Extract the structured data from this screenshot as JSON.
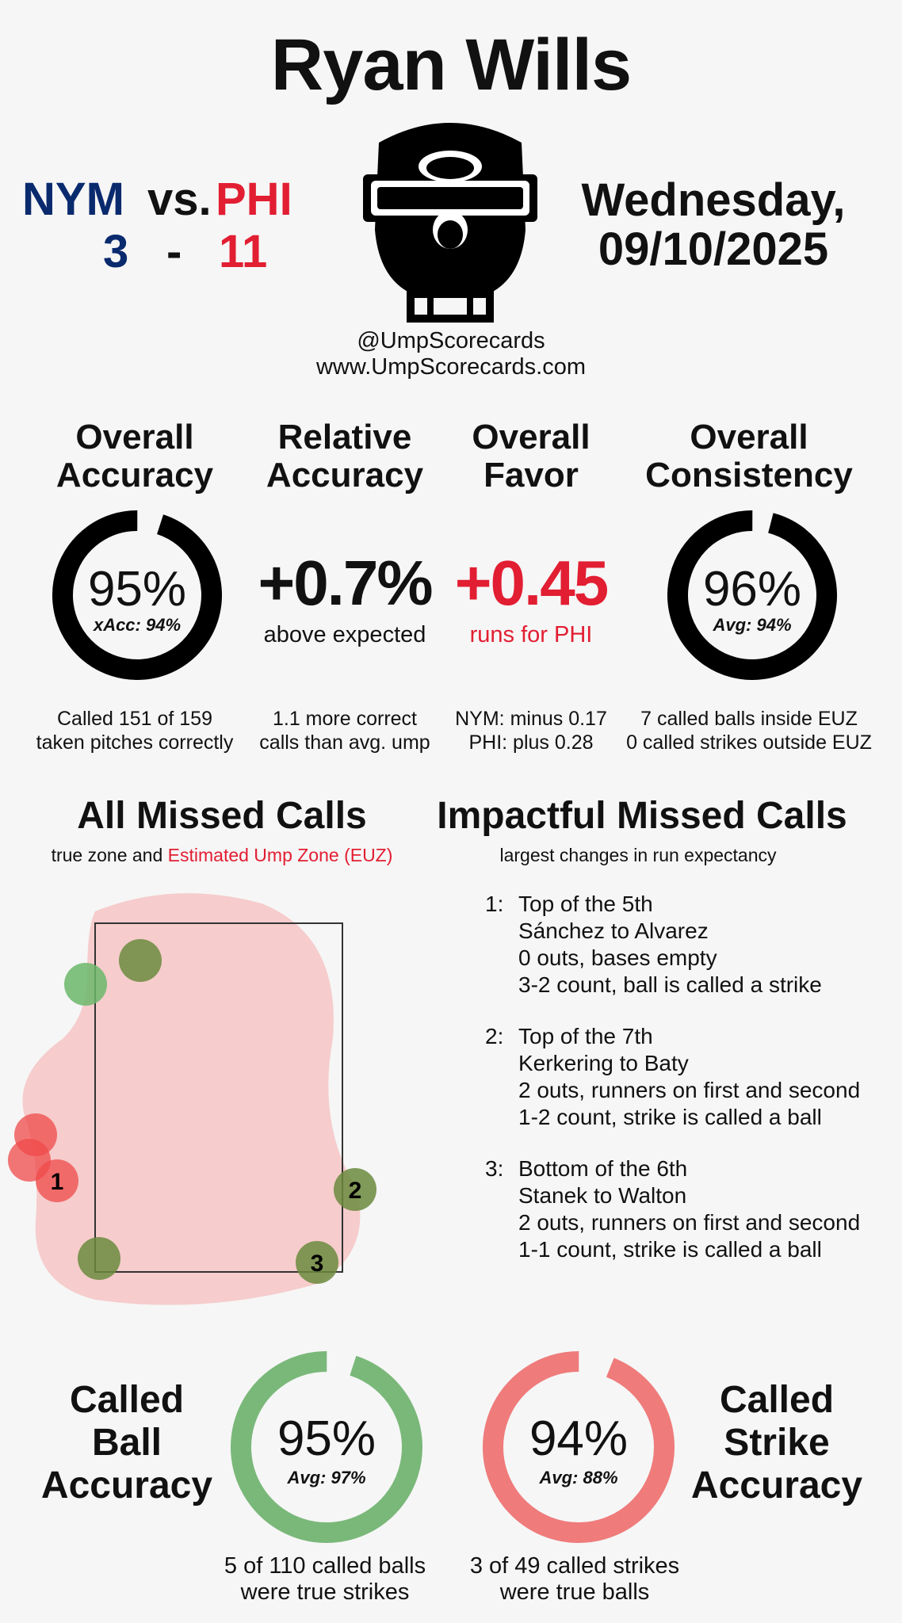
{
  "umpire": "Ryan Wills",
  "game": {
    "away_team": "NYM",
    "vs": "vs.",
    "home_team": "PHI",
    "away_score": "3",
    "dash": "-",
    "home_score": "11",
    "date_line1": "Wednesday,",
    "date_line2": "09/10/2025"
  },
  "credits": {
    "handle": "@UmpScorecards",
    "site": "www.UmpScorecards.com"
  },
  "colors": {
    "nym_blue": "#0a2a6e",
    "phi_red": "#e21e32",
    "ball_green": "#7ab87a",
    "strike_red": "#ef7b7b",
    "euz_pink": "#f6cccc"
  },
  "stats": {
    "overall_accuracy": {
      "title_line1": "Overall",
      "title_line2": "Accuracy",
      "value": "95%",
      "sub": "xAcc: 94%",
      "fraction": 0.95,
      "foot_line1": "Called 151 of 159",
      "foot_line2": "taken pitches correctly"
    },
    "relative_accuracy": {
      "title_line1": "Relative",
      "title_line2": "Accuracy",
      "value": "+0.7%",
      "sub": "above expected",
      "foot_line1": "1.1 more correct",
      "foot_line2": "calls than avg. ump"
    },
    "overall_favor": {
      "title_line1": "Overall",
      "title_line2": "Favor",
      "value": "+0.45",
      "sub": "runs for PHI",
      "foot_line1": "NYM: minus 0.17",
      "foot_line2": "PHI: plus 0.28"
    },
    "overall_consistency": {
      "title_line1": "Overall",
      "title_line2": "Consistency",
      "value": "96%",
      "sub": "Avg: 94%",
      "fraction": 0.96,
      "foot_line1": "7 called balls inside EUZ",
      "foot_line2": "0 called strikes outside EUZ"
    }
  },
  "missed_calls": {
    "title": "All Missed Calls",
    "sub_prefix": "true zone and",
    "sub_highlight": "Estimated Ump Zone (EUZ)",
    "point_labels": [
      "1",
      "2",
      "3"
    ]
  },
  "impactful": {
    "title": "Impactful Missed Calls",
    "sub": "largest changes in run expectancy",
    "items": [
      {
        "num": "1:",
        "inning": "Top of the 5th",
        "matchup": "Sánchez to Alvarez",
        "situation": "0 outs, bases empty",
        "call": "3-2 count, ball is called a strike"
      },
      {
        "num": "2:",
        "inning": "Top of the 7th",
        "matchup": "Kerkering to Baty",
        "situation": "2 outs, runners on first and second",
        "call": "1-2 count, strike is called a ball"
      },
      {
        "num": "3:",
        "inning": "Bottom of the 6th",
        "matchup": "Stanek to Walton",
        "situation": "2 outs, runners on first and second",
        "call": "1-1 count, strike is called a ball"
      }
    ]
  },
  "called_ball": {
    "title_line1": "Called",
    "title_line2": "Ball",
    "title_line3": "Accuracy",
    "value": "95%",
    "sub": "Avg: 97%",
    "fraction": 0.95,
    "foot_line1": "5 of 110 called balls",
    "foot_line2": "were true strikes"
  },
  "called_strike": {
    "title_line1": "Called",
    "title_line2": "Strike",
    "title_line3": "Accuracy",
    "value": "94%",
    "sub": "Avg: 88%",
    "fraction": 0.94,
    "foot_line1": "3 of 49 called strikes",
    "foot_line2": "were true balls"
  }
}
